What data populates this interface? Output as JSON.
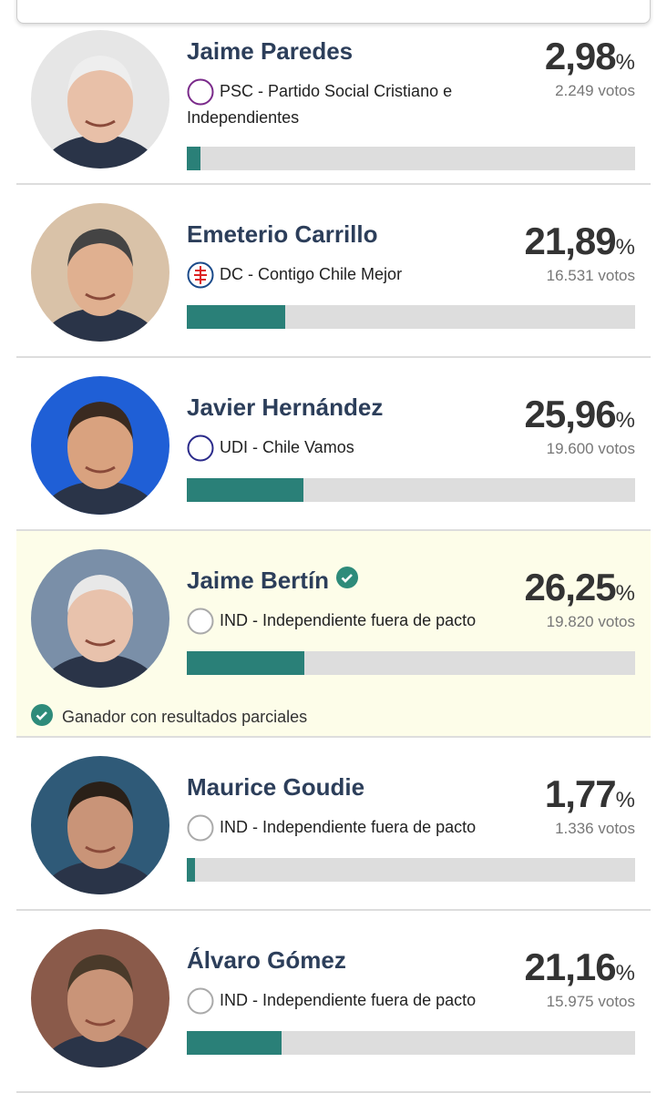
{
  "percent_unit": "%",
  "bar_range": [
    0,
    100
  ],
  "winner_note": "Ganador con resultados parciales",
  "candidates": [
    {
      "name": "Jaime Paredes",
      "party": "PSC - Partido Social Cristiano e Independientes",
      "percent": {
        "value": 2.98,
        "label": "2,98"
      },
      "votes": "2.249 votos",
      "winner": false
    },
    {
      "name": "Emeterio Carrillo",
      "party": "DC - Contigo Chile Mejor",
      "percent": {
        "value": 21.89,
        "label": "21,89"
      },
      "votes": "16.531 votos",
      "winner": false
    },
    {
      "name": "Javier Hernández",
      "party": "UDI - Chile Vamos",
      "percent": {
        "value": 25.96,
        "label": "25,96"
      },
      "votes": "19.600 votos",
      "winner": false
    },
    {
      "name": "Jaime Bertín",
      "party": "IND - Independiente fuera de pacto",
      "percent": {
        "value": 26.25,
        "label": "26,25"
      },
      "votes": "19.820 votos",
      "winner": true
    },
    {
      "name": "Maurice Goudie",
      "party": "IND - Independiente fuera de pacto",
      "percent": {
        "value": 1.77,
        "label": "1,77"
      },
      "votes": "1.336 votos",
      "winner": false
    },
    {
      "name": "Álvaro Gómez",
      "party": "IND - Independiente fuera de pacto",
      "percent": {
        "value": 21.16,
        "label": "21,16"
      },
      "votes": "15.975 votos",
      "winner": false
    }
  ]
}
